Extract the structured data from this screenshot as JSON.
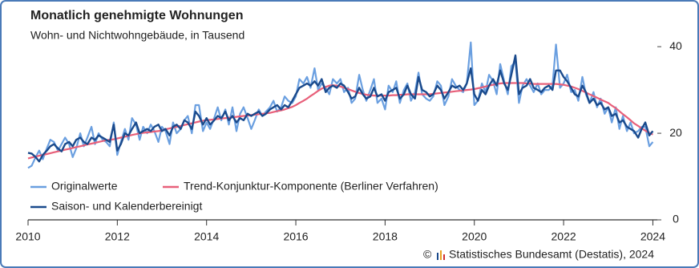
{
  "chart_data": {
    "type": "line",
    "title": "Monatlich genehmigte Wohnungen",
    "subtitle": "Wohn- und Nichtwohngebäude, in Tausend",
    "source": "Statistisches Bundesamt (Destatis), 2024",
    "legend": "lower left",
    "xlim": [
      2010,
      2024.1
    ],
    "xticks": [
      2010,
      2012,
      2014,
      2016,
      2018,
      2020,
      2022,
      2024
    ],
    "ylim": [
      0,
      48
    ],
    "yticks": [
      0,
      20,
      40
    ],
    "x": [
      2010,
      2010.08,
      2010.17,
      2010.25,
      2010.33,
      2010.42,
      2010.5,
      2010.58,
      2010.67,
      2010.75,
      2010.83,
      2010.92,
      2011,
      2011.08,
      2011.17,
      2011.25,
      2011.33,
      2011.42,
      2011.5,
      2011.58,
      2011.67,
      2011.75,
      2011.83,
      2011.92,
      2012,
      2012.08,
      2012.17,
      2012.25,
      2012.33,
      2012.42,
      2012.5,
      2012.58,
      2012.67,
      2012.75,
      2012.83,
      2012.92,
      2013,
      2013.08,
      2013.17,
      2013.25,
      2013.33,
      2013.42,
      2013.5,
      2013.58,
      2013.67,
      2013.75,
      2013.83,
      2013.92,
      2014,
      2014.08,
      2014.17,
      2014.25,
      2014.33,
      2014.42,
      2014.5,
      2014.58,
      2014.67,
      2014.75,
      2014.83,
      2014.92,
      2015,
      2015.08,
      2015.17,
      2015.25,
      2015.33,
      2015.42,
      2015.5,
      2015.58,
      2015.67,
      2015.75,
      2015.83,
      2015.92,
      2016,
      2016.08,
      2016.17,
      2016.25,
      2016.33,
      2016.42,
      2016.5,
      2016.58,
      2016.67,
      2016.75,
      2016.83,
      2016.92,
      2017,
      2017.08,
      2017.17,
      2017.25,
      2017.33,
      2017.42,
      2017.5,
      2017.58,
      2017.67,
      2017.75,
      2017.83,
      2017.92,
      2018,
      2018.08,
      2018.17,
      2018.25,
      2018.33,
      2018.42,
      2018.5,
      2018.58,
      2018.67,
      2018.75,
      2018.83,
      2018.92,
      2019,
      2019.08,
      2019.17,
      2019.25,
      2019.33,
      2019.42,
      2019.5,
      2019.58,
      2019.67,
      2019.75,
      2019.83,
      2019.92,
      2020,
      2020.08,
      2020.17,
      2020.25,
      2020.33,
      2020.42,
      2020.5,
      2020.58,
      2020.67,
      2020.75,
      2020.83,
      2020.92,
      2021,
      2021.08,
      2021.17,
      2021.25,
      2021.33,
      2021.42,
      2021.5,
      2021.58,
      2021.67,
      2021.75,
      2021.83,
      2021.92,
      2022,
      2022.08,
      2022.17,
      2022.25,
      2022.33,
      2022.42,
      2022.5,
      2022.58,
      2022.67,
      2022.75,
      2022.83,
      2022.92,
      2023,
      2023.08,
      2023.17,
      2023.25,
      2023.33,
      2023.42,
      2023.5,
      2023.58,
      2023.67,
      2023.75,
      2023.83,
      2023.92,
      2024
    ],
    "series": [
      {
        "name": "Originalwerte",
        "color": "#6a9fe0",
        "width": 2.2,
        "values": [
          12.0,
          12.5,
          14.5,
          16.0,
          14.0,
          16.5,
          18.5,
          18.0,
          16.0,
          17.5,
          19.0,
          17.5,
          14.5,
          16.5,
          20.0,
          17.0,
          19.0,
          21.5,
          17.5,
          20.0,
          18.5,
          18.0,
          17.0,
          22.5,
          15.0,
          18.0,
          21.0,
          18.5,
          23.5,
          22.0,
          18.5,
          21.5,
          20.0,
          22.0,
          20.5,
          18.0,
          21.5,
          20.5,
          17.5,
          22.5,
          20.0,
          21.0,
          23.0,
          24.0,
          20.0,
          26.5,
          26.5,
          20.5,
          22.5,
          21.0,
          23.5,
          26.0,
          23.0,
          25.5,
          22.0,
          26.0,
          20.5,
          24.5,
          26.0,
          23.5,
          21.0,
          23.0,
          25.5,
          24.0,
          25.0,
          26.0,
          27.5,
          25.0,
          26.0,
          28.5,
          27.5,
          27.0,
          28.5,
          32.5,
          31.5,
          33.0,
          30.5,
          35.0,
          30.0,
          31.5,
          30.5,
          29.0,
          32.5,
          31.5,
          32.5,
          29.5,
          30.5,
          27.0,
          28.0,
          33.5,
          30.0,
          27.5,
          30.0,
          32.5,
          27.0,
          28.0,
          25.5,
          31.0,
          29.5,
          32.0,
          27.0,
          30.0,
          31.5,
          27.5,
          29.5,
          34.0,
          29.0,
          28.0,
          27.5,
          28.5,
          32.0,
          31.0,
          26.5,
          28.5,
          32.5,
          31.0,
          30.0,
          29.5,
          31.5,
          41.0,
          26.5,
          27.5,
          31.5,
          29.5,
          33.5,
          32.0,
          29.0,
          36.0,
          32.0,
          29.0,
          35.5,
          36.5,
          27.0,
          31.0,
          32.5,
          31.0,
          29.5,
          31.5,
          29.0,
          30.0,
          30.0,
          31.0,
          40.5,
          30.5,
          31.5,
          33.5,
          29.5,
          30.0,
          27.5,
          33.0,
          29.0,
          27.0,
          29.5,
          26.0,
          28.0,
          24.5,
          26.0,
          22.5,
          26.0,
          21.0,
          24.0,
          20.5,
          22.5,
          20.0,
          20.5,
          21.5,
          21.5,
          17.0,
          18.0
        ]
      },
      {
        "name": "Trend-Konjunktur-Komponente (Berliner Verfahren)",
        "color": "#e8607a",
        "width": 2.2,
        "values": [
          14.2,
          14.4,
          14.6,
          14.8,
          15.0,
          15.2,
          15.4,
          15.6,
          15.8,
          16.0,
          16.2,
          16.4,
          16.6,
          16.8,
          17.0,
          17.2,
          17.4,
          17.6,
          17.8,
          18.0,
          18.2,
          18.4,
          18.5,
          18.6,
          18.8,
          19.0,
          19.2,
          19.4,
          19.6,
          19.8,
          20.0,
          20.1,
          20.2,
          20.3,
          20.4,
          20.5,
          20.7,
          20.9,
          21.1,
          21.3,
          21.5,
          21.7,
          21.9,
          22.1,
          22.3,
          22.5,
          22.7,
          22.9,
          23.0,
          23.1,
          23.2,
          23.3,
          23.4,
          23.5,
          23.6,
          23.7,
          23.8,
          23.9,
          24.0,
          24.1,
          24.2,
          24.3,
          24.4,
          24.5,
          24.6,
          24.7,
          24.9,
          25.1,
          25.3,
          25.5,
          25.8,
          26.1,
          26.5,
          27.0,
          27.5,
          28.0,
          28.6,
          29.2,
          29.8,
          30.3,
          30.7,
          31.0,
          31.1,
          31.0,
          30.8,
          30.5,
          30.2,
          29.9,
          29.6,
          29.3,
          29.1,
          28.9,
          28.8,
          28.7,
          28.7,
          28.7,
          28.7,
          28.7,
          28.8,
          28.8,
          28.9,
          28.9,
          29.0,
          29.0,
          29.0,
          29.0,
          29.0,
          29.0,
          29.0,
          29.1,
          29.2,
          29.3,
          29.4,
          29.5,
          29.6,
          29.7,
          29.8,
          29.9,
          30.0,
          30.1,
          30.2,
          30.4,
          30.6,
          30.8,
          31.0,
          31.2,
          31.4,
          31.5,
          31.6,
          31.6,
          31.6,
          31.6,
          31.6,
          31.6,
          31.5,
          31.5,
          31.4,
          31.4,
          31.4,
          31.4,
          31.4,
          31.4,
          31.4,
          31.3,
          31.2,
          31.0,
          30.8,
          30.5,
          30.2,
          29.8,
          29.4,
          29.0,
          28.6,
          28.2,
          27.8,
          27.4,
          27.0,
          26.4,
          25.8,
          25.1,
          24.4,
          23.7,
          23.0,
          22.3,
          21.7,
          21.1,
          20.6,
          20.1,
          19.7
        ]
      },
      {
        "name": "Saison- und Kalenderbereinigt",
        "color": "#1a4a8c",
        "width": 2.4,
        "values": [
          15.5,
          15.3,
          14.5,
          13.5,
          15.0,
          16.0,
          17.0,
          17.5,
          16.5,
          15.8,
          17.5,
          18.0,
          17.0,
          18.5,
          19.0,
          18.0,
          17.5,
          19.0,
          18.5,
          19.5,
          19.0,
          18.5,
          18.0,
          22.0,
          16.0,
          17.5,
          20.0,
          19.5,
          21.0,
          22.5,
          20.0,
          20.5,
          21.0,
          20.5,
          21.5,
          22.0,
          20.5,
          21.0,
          19.5,
          21.5,
          22.0,
          21.0,
          23.0,
          22.5,
          21.0,
          25.0,
          24.0,
          22.0,
          23.5,
          22.0,
          23.0,
          24.0,
          23.5,
          25.0,
          23.0,
          24.0,
          22.5,
          23.5,
          23.0,
          24.5,
          24.0,
          24.5,
          25.0,
          24.0,
          24.5,
          25.5,
          26.0,
          26.5,
          25.5,
          26.5,
          26.0,
          27.5,
          29.0,
          30.5,
          31.0,
          31.5,
          31.0,
          32.0,
          31.0,
          32.5,
          29.5,
          30.5,
          31.0,
          30.5,
          31.5,
          31.0,
          29.5,
          28.0,
          28.5,
          30.5,
          29.0,
          28.0,
          28.5,
          30.5,
          28.5,
          29.0,
          27.5,
          29.5,
          30.0,
          30.5,
          28.0,
          29.0,
          31.0,
          29.0,
          28.0,
          33.0,
          30.0,
          29.5,
          28.5,
          29.0,
          31.0,
          30.0,
          28.0,
          29.5,
          31.0,
          30.5,
          31.0,
          30.0,
          31.5,
          35.0,
          29.0,
          27.5,
          30.0,
          29.0,
          31.0,
          32.5,
          31.0,
          34.5,
          31.5,
          30.0,
          33.5,
          38.0,
          29.0,
          30.5,
          31.0,
          32.5,
          30.5,
          30.0,
          29.5,
          30.5,
          31.0,
          30.0,
          34.5,
          34.5,
          33.0,
          32.0,
          30.5,
          29.0,
          28.5,
          31.0,
          29.5,
          27.0,
          28.0,
          26.5,
          27.0,
          25.5,
          26.0,
          24.0,
          24.5,
          22.5,
          23.0,
          21.5,
          21.0,
          20.5,
          19.0,
          21.0,
          22.5,
          19.5,
          20.5
        ]
      }
    ]
  }
}
